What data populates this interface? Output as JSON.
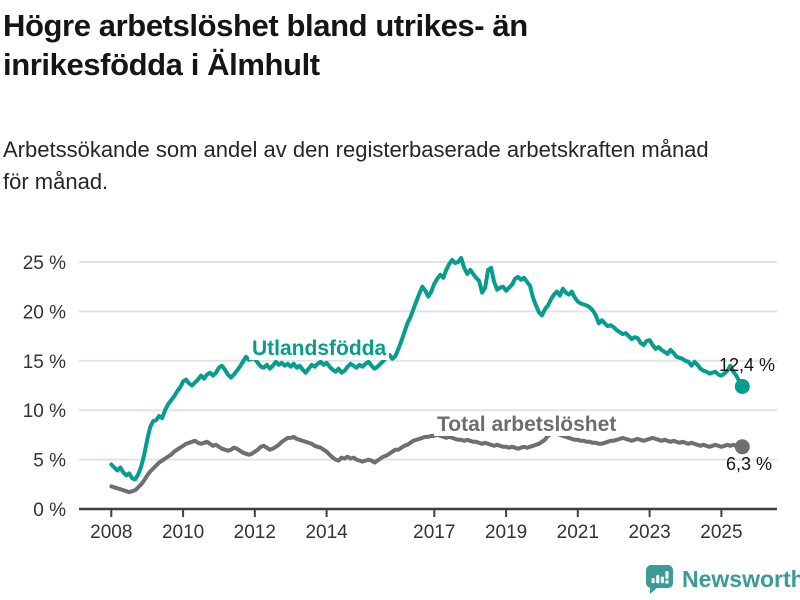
{
  "header": {
    "title": "Högre arbetslöshet bland utrikes- än inrikesfödda i Älmhult",
    "subtitle": "Arbetssökande som andel av den registerbaserade arbetskraften månad för månad."
  },
  "chart_data": {
    "type": "line",
    "title": "Högre arbetslöshet bland utrikes- än inrikesfödda i Älmhult",
    "subtitle": "Arbetssökande som andel av den registerbaserade arbetskraften månad för månad.",
    "grid": true,
    "legend_position": "inline-labels",
    "x_unit": "monthly, Jan 2008 – Aug 2025",
    "start": {
      "year": 2008,
      "month": 1
    },
    "xlim": [
      2007.1,
      2026.55
    ],
    "ylim": [
      0,
      25
    ],
    "x_ticks": [
      2008,
      2010,
      2012,
      2014,
      2017,
      2019,
      2021,
      2023,
      2025
    ],
    "y_ticks": [
      0,
      5,
      10,
      15,
      20,
      25
    ],
    "y_tick_labels": [
      "0 %",
      "5 %",
      "10 %",
      "15 %",
      "20 %",
      "25 %"
    ],
    "series": [
      {
        "name": "Utlandsfödda",
        "color": "#069d8d",
        "end_label": "12,4 %",
        "end_value": 12.4,
        "values": [
          4.5,
          4.2,
          3.9,
          4.2,
          3.7,
          3.4,
          3.6,
          3.1,
          3.0,
          3.5,
          4.3,
          5.5,
          7.0,
          8.3,
          8.9,
          9.0,
          9.4,
          9.2,
          10.0,
          10.6,
          11.0,
          11.4,
          11.9,
          12.3,
          12.9,
          13.1,
          12.7,
          12.5,
          12.8,
          13.1,
          13.5,
          13.2,
          13.6,
          13.8,
          13.5,
          13.8,
          14.3,
          14.5,
          14.1,
          13.6,
          13.3,
          13.6,
          14.0,
          14.4,
          14.9,
          15.4,
          15.1,
          15.2,
          15.2,
          14.8,
          14.4,
          14.3,
          14.6,
          14.2,
          14.5,
          14.9,
          14.6,
          14.8,
          14.5,
          14.7,
          14.4,
          14.7,
          14.3,
          14.5,
          14.1,
          13.8,
          14.2,
          14.6,
          14.4,
          14.7,
          14.9,
          14.6,
          14.8,
          14.4,
          14.1,
          13.9,
          14.2,
          13.8,
          14.0,
          14.4,
          14.7,
          14.5,
          14.3,
          14.6,
          14.4,
          14.7,
          14.9,
          14.5,
          14.2,
          14.4,
          14.7,
          15.0,
          15.3,
          15.6,
          15.2,
          15.5,
          16.2,
          17.0,
          17.9,
          18.8,
          19.4,
          20.2,
          21.0,
          21.8,
          22.5,
          22.1,
          21.5,
          22.0,
          22.8,
          23.3,
          23.7,
          23.4,
          24.2,
          24.8,
          25.2,
          24.9,
          25.0,
          25.4,
          24.4,
          23.8,
          24.2,
          23.8,
          23.4,
          23.1,
          21.9,
          22.4,
          24.2,
          24.4,
          23.0,
          22.2,
          22.4,
          22.5,
          22.1,
          22.4,
          22.7,
          23.3,
          23.5,
          23.2,
          23.4,
          23.0,
          22.6,
          21.4,
          20.6,
          19.9,
          19.6,
          20.2,
          20.6,
          21.2,
          21.7,
          22.0,
          21.6,
          22.3,
          21.9,
          21.7,
          22.0,
          21.4,
          21.0,
          20.8,
          20.7,
          20.6,
          20.4,
          20.1,
          19.6,
          18.8,
          19.1,
          18.8,
          18.5,
          18.6,
          18.4,
          18.1,
          17.9,
          17.7,
          17.8,
          17.5,
          17.2,
          17.4,
          17.3,
          16.8,
          16.6,
          17.0,
          17.1,
          16.6,
          16.2,
          16.4,
          16.1,
          15.9,
          15.7,
          16.1,
          15.8,
          15.4,
          15.3,
          15.2,
          15.0,
          14.9,
          14.5,
          14.9,
          14.6,
          14.2,
          14.0,
          13.9,
          13.7,
          13.8,
          13.9,
          13.6,
          13.5,
          13.7,
          14.0,
          14.5,
          13.9,
          13.5,
          12.9,
          12.4
        ]
      },
      {
        "name": "Total arbetslöshet",
        "color": "#6f6f72",
        "end_label": "6,3 %",
        "end_value": 6.3,
        "values": [
          2.3,
          2.2,
          2.1,
          2.0,
          1.9,
          1.8,
          1.7,
          1.8,
          1.9,
          2.2,
          2.5,
          2.9,
          3.4,
          3.8,
          4.1,
          4.4,
          4.7,
          4.9,
          5.1,
          5.3,
          5.5,
          5.8,
          6.0,
          6.2,
          6.4,
          6.6,
          6.7,
          6.8,
          6.9,
          6.7,
          6.6,
          6.7,
          6.8,
          6.6,
          6.4,
          6.5,
          6.3,
          6.1,
          6.0,
          5.9,
          6.0,
          6.2,
          6.1,
          5.9,
          5.7,
          5.6,
          5.5,
          5.6,
          5.8,
          6.0,
          6.3,
          6.4,
          6.2,
          6.0,
          6.1,
          6.3,
          6.5,
          6.8,
          7.0,
          7.2,
          7.2,
          7.3,
          7.1,
          7.0,
          6.9,
          6.8,
          6.7,
          6.6,
          6.4,
          6.3,
          6.2,
          6.0,
          5.8,
          5.5,
          5.2,
          5.0,
          4.9,
          5.2,
          5.1,
          5.3,
          5.1,
          5.2,
          5.0,
          4.9,
          4.8,
          4.9,
          5.0,
          4.9,
          4.7,
          4.9,
          5.1,
          5.3,
          5.4,
          5.6,
          5.8,
          6.0,
          6.0,
          6.2,
          6.4,
          6.5,
          6.7,
          6.9,
          7.0,
          7.1,
          7.2,
          7.3,
          7.3,
          7.4,
          7.4,
          7.5,
          7.4,
          7.3,
          7.2,
          7.3,
          7.2,
          7.1,
          7.0,
          7.0,
          6.9,
          7.0,
          6.9,
          6.8,
          6.8,
          6.7,
          6.6,
          6.7,
          6.6,
          6.5,
          6.4,
          6.5,
          6.4,
          6.3,
          6.3,
          6.2,
          6.3,
          6.2,
          6.1,
          6.2,
          6.3,
          6.2,
          6.3,
          6.4,
          6.5,
          6.6,
          6.8,
          7.0,
          7.4,
          7.6,
          7.7,
          7.6,
          7.5,
          7.4,
          7.3,
          7.2,
          7.1,
          7.0,
          7.0,
          6.9,
          6.9,
          6.8,
          6.8,
          6.7,
          6.7,
          6.6,
          6.6,
          6.7,
          6.8,
          6.9,
          6.9,
          7.0,
          7.1,
          7.2,
          7.1,
          7.0,
          6.9,
          7.0,
          7.1,
          7.0,
          6.9,
          7.0,
          7.1,
          7.2,
          7.1,
          7.0,
          6.9,
          7.0,
          6.9,
          6.8,
          6.9,
          6.8,
          6.7,
          6.8,
          6.7,
          6.6,
          6.7,
          6.6,
          6.5,
          6.4,
          6.5,
          6.4,
          6.3,
          6.4,
          6.5,
          6.4,
          6.3,
          6.4,
          6.5,
          6.4,
          6.5,
          6.4,
          6.3,
          6.3
        ]
      }
    ]
  },
  "footer": {
    "brand": "Newsworthy"
  },
  "colors": {
    "accent_teal": "#069d8d",
    "series_gray": "#6f6f72",
    "logo_teal": "#3b9b97",
    "grid": "#e3e3e3",
    "axis": "#3f3f3f",
    "tick_text": "#333333",
    "text": "#151515"
  }
}
